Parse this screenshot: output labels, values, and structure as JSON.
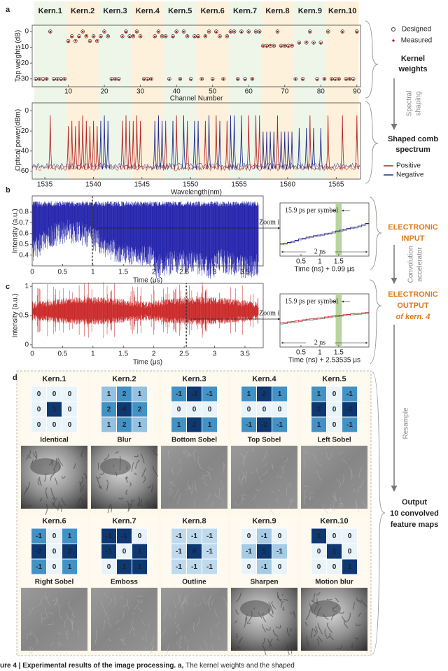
{
  "panel_labels": [
    "a",
    "b",
    "c",
    "d"
  ],
  "kernel_names": [
    "Kern.1",
    "Kern.2",
    "Kern.3",
    "Kern.4",
    "Kern.5",
    "Kern.6",
    "Kern.7",
    "Kern.8",
    "Kern.9",
    "Kern.10"
  ],
  "tap_weights": {
    "type": "scatter",
    "ylabel": "Tap weights (dB)",
    "xlabel": "Channel Number",
    "xlim": [
      0,
      91
    ],
    "xticks": [
      10,
      20,
      30,
      40,
      50,
      60,
      70,
      80,
      90
    ],
    "ylim": [
      -35,
      4
    ],
    "yticks": [
      0,
      -10,
      -20,
      -30
    ],
    "x": [
      1,
      2,
      3,
      4,
      5,
      6,
      7,
      8,
      9,
      10,
      11,
      12,
      13,
      14,
      15,
      16,
      17,
      18,
      19,
      20,
      21,
      22,
      23,
      24,
      25,
      26,
      27,
      28,
      29,
      30,
      31,
      32,
      33,
      34,
      35,
      36,
      37,
      38,
      39,
      40,
      41,
      42,
      43,
      44,
      45,
      46,
      47,
      48,
      49,
      50,
      51,
      52,
      53,
      54,
      55,
      56,
      57,
      58,
      59,
      60,
      61,
      62,
      63,
      64,
      65,
      66,
      67,
      68,
      69,
      70,
      71,
      72,
      73,
      74,
      75,
      76,
      77,
      78,
      79,
      80,
      81,
      82,
      83,
      84,
      85,
      86,
      87,
      88,
      89,
      90
    ],
    "series": [
      {
        "name": "Designed",
        "color": "#333333",
        "values": [
          -30,
          -30,
          -30,
          -30,
          0,
          -30,
          -30,
          -30,
          -30,
          -6,
          -3,
          -6,
          -3,
          0,
          -3,
          -6,
          -3,
          -6,
          -3,
          0,
          -3,
          -30,
          -30,
          -30,
          -3,
          0,
          -3,
          -3,
          0,
          -3,
          -30,
          -30,
          -30,
          -3,
          0,
          -3,
          -3,
          -30,
          -3,
          0,
          -30,
          0,
          -3,
          -30,
          -3,
          -3,
          -30,
          -3,
          0,
          -30,
          0,
          -3,
          -30,
          -3,
          0,
          0,
          -30,
          0,
          -30,
          0,
          -30,
          0,
          0,
          -9,
          -9,
          -9,
          -9,
          0,
          -9,
          -9,
          -9,
          -9,
          -30,
          -7,
          -30,
          -7,
          0,
          -7,
          -30,
          -7,
          -30,
          0,
          -30,
          -30,
          -30,
          0,
          -30,
          -30,
          -30,
          0
        ]
      },
      {
        "name": "Measured",
        "color": "#c00000",
        "values": [
          -30.5,
          -30.2,
          -30.8,
          -30.1,
          -0.2,
          -30.6,
          -30.3,
          -30.7,
          -30.2,
          -6.3,
          -3.2,
          -5.8,
          -3.4,
          -0.1,
          -2.8,
          -6.2,
          -3.1,
          -5.9,
          -3.2,
          -0.1,
          -2.9,
          -30.4,
          -30.2,
          -30.6,
          -3.1,
          -0.3,
          -3.3,
          -2.8,
          -0.2,
          -3.1,
          -30.3,
          -30.5,
          -30.1,
          -3.2,
          -0.1,
          -2.9,
          -3.1,
          -30.4,
          -3.3,
          -0.2,
          -30.2,
          -0.1,
          -2.9,
          -30.6,
          -3.2,
          -3.3,
          -30.1,
          -2.9,
          -0.1,
          -30.5,
          -0.3,
          -3.1,
          -30.2,
          -3.0,
          -0.2,
          -0.1,
          -30.3,
          -0.3,
          -30.6,
          -0.2,
          -30.1,
          -0.1,
          -0.2,
          -9.2,
          -9.4,
          -8.8,
          -9.1,
          -0.1,
          -9.3,
          -9.0,
          -9.5,
          -8.9,
          -30.2,
          -7.2,
          -30.4,
          -6.8,
          -0.2,
          -7.1,
          -30.6,
          -7.3,
          -30.1,
          -0.1,
          -30.3,
          -30.5,
          -30.2,
          -0.2,
          -30.4,
          -30.1,
          -30.6,
          -0.3
        ]
      }
    ]
  },
  "spectrum": {
    "type": "line",
    "ylabel": "Optical power(dBm)",
    "xlabel": "Wavelength(nm)",
    "xlim": [
      1533.7,
      1567.5
    ],
    "xticks": [
      1535,
      1540,
      1545,
      1550,
      1555,
      1560,
      1565
    ],
    "ylim": [
      -68,
      8
    ],
    "yticks": [
      0,
      -20,
      -40,
      -60
    ],
    "legend": [
      {
        "name": "Positive",
        "color": "#b22222"
      },
      {
        "name": "Negative",
        "color": "#1f2a8c"
      }
    ]
  },
  "input_trace": {
    "type": "line",
    "ylabel": "Intensity (a.u.)",
    "xlabel": "Time (μs)",
    "xlim": [
      0,
      3.8
    ],
    "xticks": [
      0,
      0.5,
      1,
      1.5,
      2,
      2.5,
      3,
      3.5
    ],
    "ylim": [
      0.3,
      0.95
    ],
    "yticks": [
      0.4,
      0.5,
      0.6,
      0.7,
      0.8
    ],
    "marker": 0.99,
    "color": "#1a1aa8",
    "zoom_label": "Zoom in",
    "inset": {
      "symbol_label": "15.9 ps per symbol",
      "span_label": "2 ns",
      "xlim": [
        0,
        2.3
      ],
      "xticks": [
        0.5,
        1,
        1.5
      ],
      "xlabel": "Time (ns) + 0.99 μs"
    }
  },
  "output_trace": {
    "type": "line",
    "ylabel": "Intensity (a.u.)",
    "xlabel": "Time (μs)",
    "xlim": [
      0,
      3.8
    ],
    "xticks": [
      0,
      0.5,
      1,
      1.5,
      2,
      2.5,
      3,
      3.5
    ],
    "ylim": [
      -0.05,
      1.05
    ],
    "yticks": [
      0,
      0.5,
      1
    ],
    "marker": 2.53535,
    "color": "#c81e1e",
    "zoom_label": "Zoom in",
    "inset": {
      "symbol_label": "15.9 ps per symbol",
      "span_label": "2 ns",
      "xlim": [
        0,
        2.3
      ],
      "xticks": [
        0.5,
        1,
        1.5
      ],
      "xlabel": "Time (ns) + 2.53535 μs"
    }
  },
  "side_labels": {
    "designed": "Designed",
    "measured": "Measured",
    "kernel_weights": [
      "Kernel",
      "weights"
    ],
    "spectral_shaping": [
      "Spectral",
      "shaping"
    ],
    "shaped_comb": [
      "Shaped comb",
      "spectrum"
    ],
    "electronic_input": [
      "ELECTRONIC",
      "INPUT"
    ],
    "convolution": [
      "Convolution",
      "accelerator"
    ],
    "electronic_output": [
      "ELECTRONIC",
      "OUTPUT",
      "of kern. 4"
    ],
    "resample": "Resample",
    "output": [
      "Output",
      "10 convolved",
      "feature maps"
    ]
  },
  "kernels": [
    {
      "name": "Kern.1",
      "label": "Identical",
      "matrix": [
        [
          0,
          0,
          0
        ],
        [
          0,
          1,
          0
        ],
        [
          0,
          0,
          0
        ]
      ]
    },
    {
      "name": "Kern.2",
      "label": "Blur",
      "matrix": [
        [
          1,
          2,
          1
        ],
        [
          2,
          4,
          2
        ],
        [
          1,
          2,
          1
        ]
      ]
    },
    {
      "name": "Kern.3",
      "label": "Bottom Sobel",
      "matrix": [
        [
          -1,
          -2,
          -1
        ],
        [
          0,
          0,
          0
        ],
        [
          1,
          2,
          1
        ]
      ]
    },
    {
      "name": "Kern.4",
      "label": "Top Sobel",
      "matrix": [
        [
          1,
          2,
          1
        ],
        [
          0,
          0,
          0
        ],
        [
          -1,
          -2,
          -1
        ]
      ]
    },
    {
      "name": "Kern.5",
      "label": "Left Sobel",
      "matrix": [
        [
          1,
          0,
          -1
        ],
        [
          2,
          0,
          -2
        ],
        [
          1,
          0,
          -1
        ]
      ]
    },
    {
      "name": "Kern.6",
      "label": "Right Sobel",
      "matrix": [
        [
          -1,
          0,
          1
        ],
        [
          -2,
          0,
          2
        ],
        [
          -1,
          0,
          1
        ]
      ]
    },
    {
      "name": "Kern.7",
      "label": "Emboss",
      "matrix": [
        [
          -1,
          -1,
          0
        ],
        [
          -1,
          0,
          1
        ],
        [
          0,
          1,
          1
        ]
      ]
    },
    {
      "name": "Kern.8",
      "label": "Outline",
      "matrix": [
        [
          -1,
          -1,
          -1
        ],
        [
          -1,
          8,
          -1
        ],
        [
          -1,
          -1,
          -1
        ]
      ]
    },
    {
      "name": "Kern.9",
      "label": "Sharpen",
      "matrix": [
        [
          0,
          -1,
          0
        ],
        [
          -1,
          5,
          -1
        ],
        [
          0,
          -1,
          0
        ]
      ]
    },
    {
      "name": "Kern.10",
      "label": "Motion blur",
      "matrix": [
        [
          1,
          0,
          0
        ],
        [
          0,
          1,
          0
        ],
        [
          0,
          0,
          1
        ]
      ]
    }
  ],
  "caption": [
    "ure 4 | Experimental results of the image processing.",
    " a, ",
    "The kernel weights and the shaped"
  ]
}
